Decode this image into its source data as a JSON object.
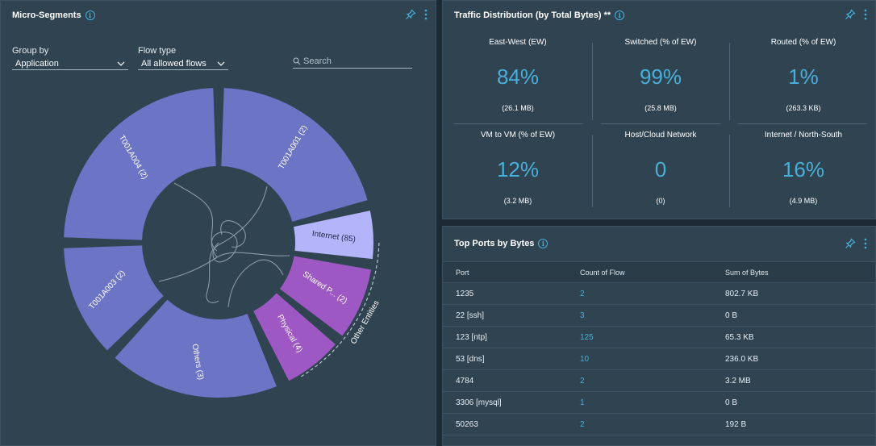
{
  "micro_segments": {
    "title": "Micro-Segments",
    "info_icon": "i",
    "group_by": {
      "label": "Group by",
      "value": "Application"
    },
    "flow_type": {
      "label": "Flow type",
      "value": "All allowed flows"
    },
    "search": {
      "placeholder": "Search"
    },
    "segments": [
      {
        "label": "T001A004 (2)",
        "color": "#6c74c6"
      },
      {
        "label": "T001A001 (2)",
        "color": "#6c74c6"
      },
      {
        "label": "Internet (85)",
        "color": "#b4b4fa"
      },
      {
        "label": "Shared P... (2)",
        "color": "#9e58c4"
      },
      {
        "label": "Physical (4)",
        "color": "#9e58c4"
      },
      {
        "label": "Others (3)",
        "color": "#6c74c6"
      },
      {
        "label": "T001A003 (2)",
        "color": "#6c74c6"
      }
    ],
    "other_entities_label": "Other Entities"
  },
  "traffic": {
    "title": "Traffic Distribution (by Total Bytes) **",
    "metrics": [
      {
        "label": "East-West (EW)",
        "value": "84%",
        "sub": "(26.1 MB)"
      },
      {
        "label": "Switched (% of EW)",
        "value": "99%",
        "sub": "(25.8 MB)"
      },
      {
        "label": "Routed (% of EW)",
        "value": "1%",
        "sub": "(263.3 KB)"
      },
      {
        "label": "VM to VM (% of EW)",
        "value": "12%",
        "sub": "(3.2 MB)"
      },
      {
        "label": "Host/Cloud Network",
        "value": "0",
        "sub": "(0)"
      },
      {
        "label": "Internet / North-South",
        "value": "16%",
        "sub": "(4.9 MB)"
      }
    ]
  },
  "ports": {
    "title": "Top Ports by Bytes",
    "columns": [
      "Port",
      "Count of Flow",
      "Sum of Bytes"
    ],
    "rows": [
      [
        "1235",
        "2",
        "802.7 KB"
      ],
      [
        "22 [ssh]",
        "3",
        "0 B"
      ],
      [
        "123 [ntp]",
        "125",
        "65.3 KB"
      ],
      [
        "53 [dns]",
        "10",
        "236.0 KB"
      ],
      [
        "4784",
        "2",
        "3.2 MB"
      ],
      [
        "3306 [mysql]",
        "1",
        "0 B"
      ],
      [
        "50263",
        "2",
        "192 B"
      ]
    ]
  }
}
